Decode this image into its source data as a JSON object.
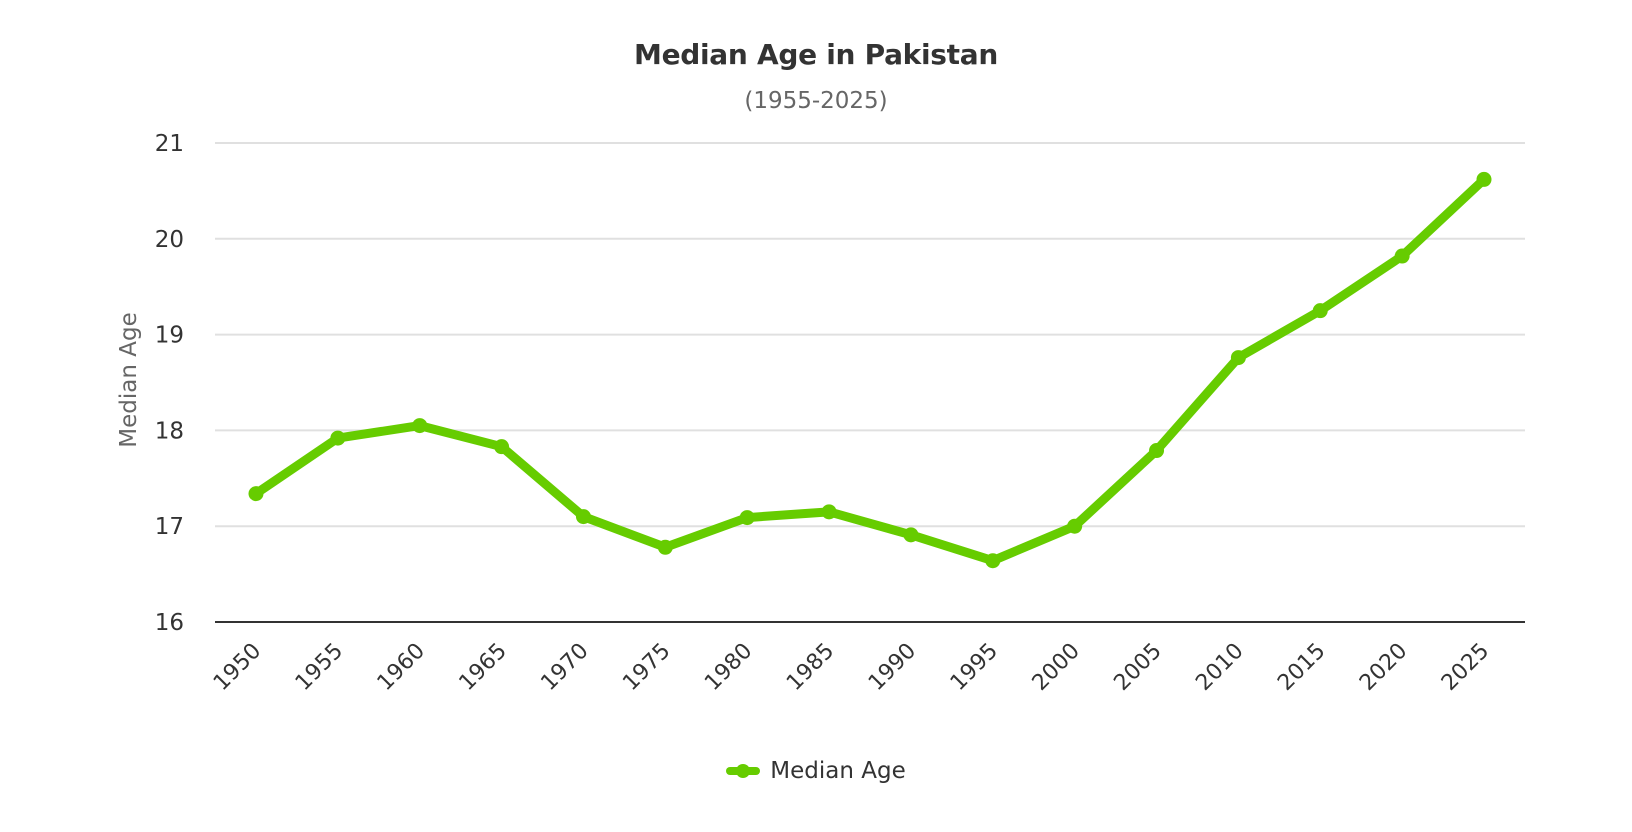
{
  "chart_data": {
    "type": "line",
    "title": "Median Age in Pakistan",
    "subtitle": "(1955-2025)",
    "xlabel": "",
    "ylabel": "Median Age",
    "ylim": [
      16,
      21
    ],
    "yticks": [
      16,
      17,
      18,
      19,
      20,
      21
    ],
    "grid": true,
    "legend_position": "bottom",
    "categories": [
      "1950",
      "1955",
      "1960",
      "1965",
      "1970",
      "1975",
      "1980",
      "1985",
      "1990",
      "1995",
      "2000",
      "2005",
      "2010",
      "2015",
      "2020",
      "2025"
    ],
    "series": [
      {
        "name": "Median Age",
        "color": "#66cc00",
        "values": [
          17.34,
          17.92,
          18.05,
          17.83,
          17.1,
          16.78,
          17.09,
          17.15,
          16.91,
          16.64,
          17.0,
          17.79,
          18.76,
          19.25,
          19.82,
          20.62
        ]
      }
    ]
  },
  "colors": {
    "series": "#66cc00",
    "grid": "#e0e0e0",
    "axis": "#333333",
    "text": "#333333",
    "muted": "#666666"
  },
  "legend": {
    "items": [
      {
        "label": "Median Age",
        "icon": "line-marker-icon"
      }
    ]
  }
}
